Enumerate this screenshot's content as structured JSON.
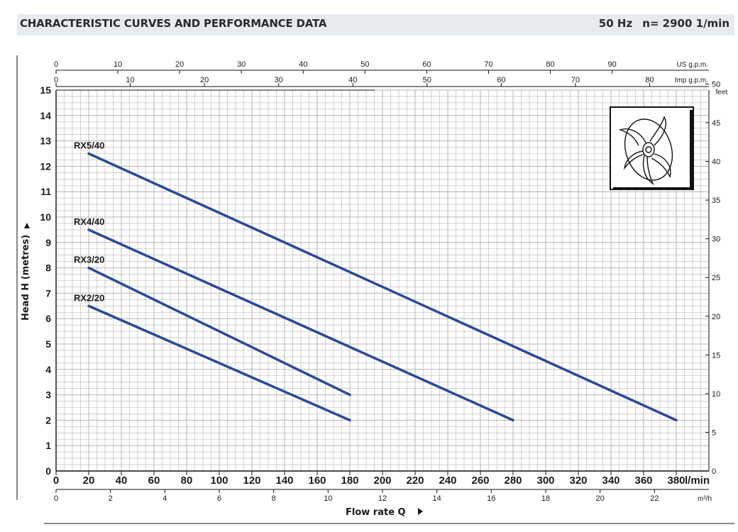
{
  "header": {
    "title": "CHARACTERISTIC CURVES AND PERFORMANCE DATA",
    "frequency": "50 Hz",
    "speed": "n= 2900  1/min"
  },
  "colors": {
    "curve": "#2a4a96",
    "grid": "#b4b4b4",
    "header_bg": "#e6ebf0"
  },
  "chart_data": {
    "type": "line",
    "xlabel": "Flow rate Q",
    "ylabel": "Head H (metres)",
    "xlim": [
      0,
      400
    ],
    "ylim": [
      0,
      15
    ],
    "grid": true,
    "x_unit": "l/min",
    "x_ticks": [
      0,
      20,
      40,
      60,
      80,
      100,
      120,
      140,
      160,
      180,
      200,
      220,
      240,
      260,
      280,
      300,
      320,
      340,
      360,
      380
    ],
    "y_ticks": [
      0,
      1,
      2,
      3,
      4,
      5,
      6,
      7,
      8,
      9,
      10,
      11,
      12,
      13,
      14,
      15
    ],
    "secondary_axes": {
      "us_gpm": {
        "unit": "US g.p.m.",
        "ticks": [
          0,
          10,
          20,
          30,
          40,
          50,
          60,
          70,
          80,
          90
        ]
      },
      "imp_gpm": {
        "unit": "Imp g.p.m.",
        "ticks": [
          0,
          10,
          20,
          30,
          40,
          50,
          60,
          70,
          80
        ]
      },
      "m3h": {
        "unit": "m³/h",
        "ticks": [
          0,
          2,
          4,
          6,
          8,
          10,
          12,
          14,
          16,
          18,
          20,
          22
        ]
      },
      "feet": {
        "unit": "feet",
        "ticks": [
          0,
          5,
          10,
          15,
          20,
          25,
          30,
          35,
          40,
          45,
          50
        ]
      }
    },
    "series": [
      {
        "name": "RX5/40",
        "x": [
          20,
          380
        ],
        "y": [
          12.5,
          2
        ]
      },
      {
        "name": "RX4/40",
        "x": [
          20,
          280
        ],
        "y": [
          9.5,
          2
        ]
      },
      {
        "name": "RX3/20",
        "x": [
          20,
          180
        ],
        "y": [
          8,
          3
        ]
      },
      {
        "name": "RX2/20",
        "x": [
          20,
          180
        ],
        "y": [
          6.5,
          2
        ]
      }
    ]
  }
}
